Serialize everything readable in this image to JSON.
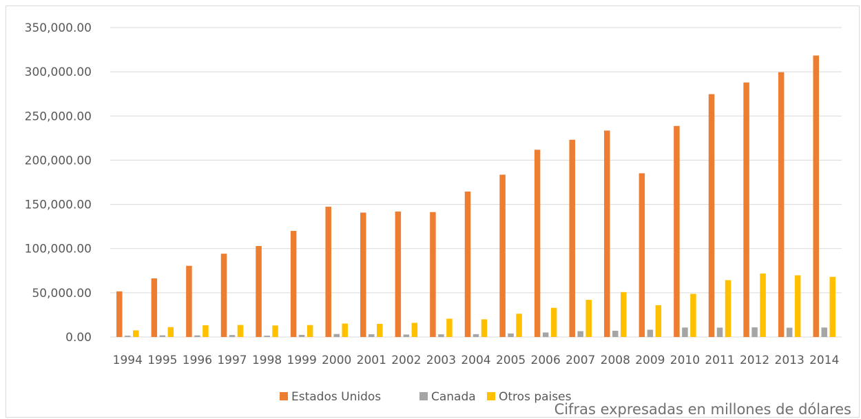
{
  "chart_data": {
    "type": "bar",
    "categories": [
      "1994",
      "1995",
      "1996",
      "1997",
      "1998",
      "1999",
      "2000",
      "2001",
      "2002",
      "2003",
      "2004",
      "2005",
      "2006",
      "2007",
      "2008",
      "2009",
      "2010",
      "2011",
      "2012",
      "2013",
      "2014"
    ],
    "series": [
      {
        "name": "Estados Unidos",
        "color": "#ed7d31",
        "values": [
          51600,
          66300,
          80500,
          94200,
          102900,
          120000,
          147400,
          140700,
          141900,
          141300,
          164500,
          183600,
          211800,
          223100,
          233500,
          185200,
          238700,
          274700,
          287900,
          299500,
          318400
        ]
      },
      {
        "name": "Canada",
        "color": "#a5a5a5",
        "values": [
          1500,
          1900,
          1800,
          2200,
          1500,
          2400,
          3400,
          3100,
          2800,
          3000,
          3200,
          4000,
          5100,
          6600,
          7100,
          8200,
          10700,
          10600,
          10900,
          10500,
          10700
        ]
      },
      {
        "name": "Otros paises",
        "color": "#ffc000",
        "values": [
          7500,
          11200,
          13300,
          13600,
          13000,
          13500,
          15200,
          14900,
          16000,
          20700,
          20000,
          26300,
          33000,
          42000,
          50800,
          36000,
          48800,
          64300,
          71800,
          69800,
          68000
        ]
      }
    ],
    "ylim": [
      0,
      350000
    ],
    "yticks": [
      0,
      50000,
      100000,
      150000,
      200000,
      250000,
      300000,
      350000
    ],
    "ytick_labels": [
      "0.00",
      "50,000.00",
      "100,000.00",
      "150,000.00",
      "200,000.00",
      "250,000.00",
      "300,000.00",
      "350,000.00"
    ],
    "grid": true,
    "legend": "bottom-center"
  },
  "note": "Cifras expresadas en millones de dólares"
}
